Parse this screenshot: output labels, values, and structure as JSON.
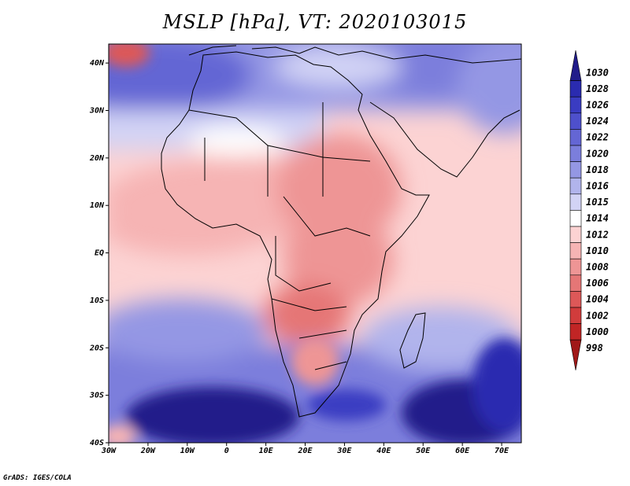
{
  "title": "MSLP [hPa], VT: 2020103015",
  "footer": "GrADS: IGES/COLA",
  "axes": {
    "lat_labels": [
      "40N",
      "30N",
      "20N",
      "10N",
      "EQ",
      "10S",
      "20S",
      "30S",
      "40S"
    ],
    "lon_labels": [
      "30W",
      "20W",
      "10W",
      "0",
      "10E",
      "20E",
      "30E",
      "40E",
      "50E",
      "60E",
      "70E"
    ],
    "lat_values": [
      40,
      30,
      20,
      10,
      0,
      -10,
      -20,
      -30,
      -40
    ],
    "lon_values": [
      -30,
      -20,
      -10,
      0,
      10,
      20,
      30,
      40,
      50,
      60,
      70
    ],
    "lon_range": [
      -30,
      75
    ],
    "lat_range": [
      -40,
      44
    ]
  },
  "colorbar": {
    "levels": [
      "1030",
      "1028",
      "1026",
      "1024",
      "1022",
      "1020",
      "1018",
      "1016",
      "1015",
      "1014",
      "1012",
      "1010",
      "1008",
      "1006",
      "1004",
      "1002",
      "1000",
      "998"
    ],
    "colors": [
      "#211c8a",
      "#2a2bb0",
      "#3a3cc2",
      "#4e50cc",
      "#6466d4",
      "#7b7edc",
      "#9497e4",
      "#b1b4ec",
      "#d2d3f5",
      "#ffffff",
      "#fcd3d3",
      "#f6b4b4",
      "#ee9595",
      "#e57676",
      "#dd5858",
      "#d13c3c",
      "#c12525",
      "#a01818"
    ]
  },
  "map": {
    "region": "Africa",
    "variable": "Mean sea level pressure"
  }
}
